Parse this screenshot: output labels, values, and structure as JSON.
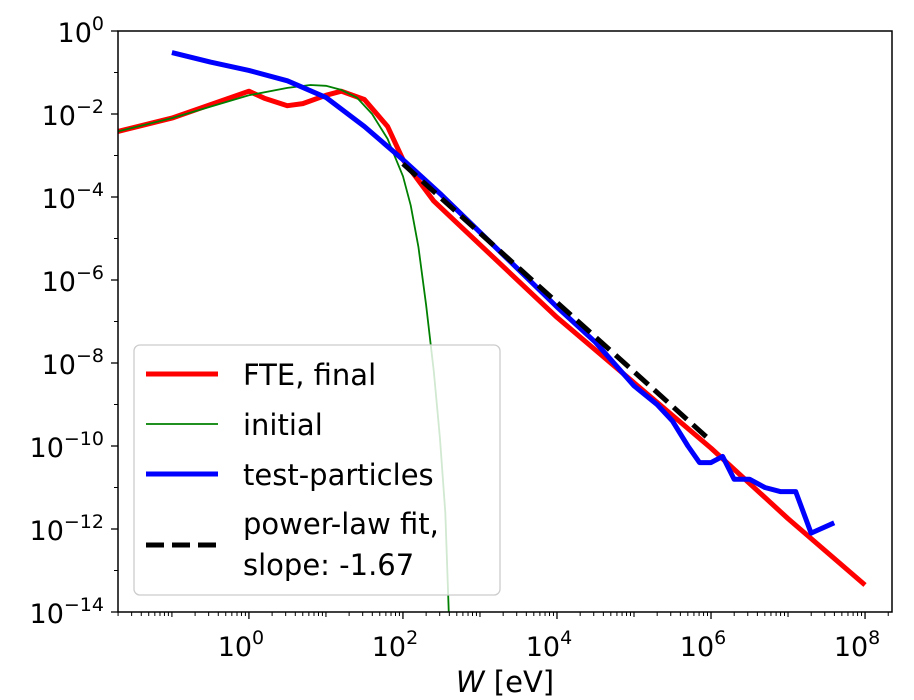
{
  "chart_data": {
    "type": "line",
    "title": "",
    "xlabel": {
      "var": "W",
      "unit": "[eV]"
    },
    "ylabel": "",
    "xscale": "log",
    "yscale": "log",
    "xlim_exp": [
      -1.7,
      8.35
    ],
    "ylim_exp": [
      -14,
      0
    ],
    "x_ticks": [
      {
        "base": "10",
        "exp": "0"
      },
      {
        "base": "10",
        "exp": "2"
      },
      {
        "base": "10",
        "exp": "4"
      },
      {
        "base": "10",
        "exp": "6"
      },
      {
        "base": "10",
        "exp": "8"
      }
    ],
    "y_ticks": [
      {
        "base": "10",
        "exp": "0"
      },
      {
        "base": "10",
        "exp": "−2"
      },
      {
        "base": "10",
        "exp": "−4"
      },
      {
        "base": "10",
        "exp": "−6"
      },
      {
        "base": "10",
        "exp": "−8"
      },
      {
        "base": "10",
        "exp": "−10"
      },
      {
        "base": "10",
        "exp": "−12"
      },
      {
        "base": "10",
        "exp": "−14"
      }
    ],
    "legend_position": "lower-left",
    "series": [
      {
        "name": "FTE, final",
        "color": "#ff0000",
        "style": "solid",
        "width": "thick",
        "log10_points": [
          [
            -1.7,
            -2.42
          ],
          [
            -1.0,
            -2.1
          ],
          [
            0,
            -1.45
          ],
          [
            0.2,
            -1.62
          ],
          [
            0.5,
            -1.8
          ],
          [
            0.7,
            -1.75
          ],
          [
            1.0,
            -1.55
          ],
          [
            1.2,
            -1.45
          ],
          [
            1.5,
            -1.65
          ],
          [
            1.8,
            -2.3
          ],
          [
            2.0,
            -3.1
          ],
          [
            2.4,
            -4.1
          ],
          [
            4,
            -6.9
          ],
          [
            6,
            -10.05
          ],
          [
            7,
            -11.75
          ],
          [
            8,
            -13.35
          ]
        ]
      },
      {
        "name": "initial",
        "color": "#008000",
        "style": "solid",
        "width": "thin",
        "log10_points": [
          [
            -1.7,
            -2.42
          ],
          [
            -1.0,
            -2.1
          ],
          [
            0,
            -1.55
          ],
          [
            0.5,
            -1.37
          ],
          [
            0.8,
            -1.3
          ],
          [
            1.0,
            -1.32
          ],
          [
            1.2,
            -1.42
          ],
          [
            1.4,
            -1.6
          ],
          [
            1.6,
            -2.0
          ],
          [
            1.8,
            -2.6
          ],
          [
            2.0,
            -3.5
          ],
          [
            2.1,
            -4.2
          ],
          [
            2.2,
            -5.2
          ],
          [
            2.3,
            -6.6
          ],
          [
            2.4,
            -8.2
          ],
          [
            2.48,
            -9.8
          ],
          [
            2.55,
            -11.6
          ],
          [
            2.6,
            -14.3
          ]
        ]
      },
      {
        "name": "test-particles",
        "color": "#0000ff",
        "style": "solid",
        "width": "thick",
        "log10_points": [
          [
            -1.0,
            -0.52
          ],
          [
            -0.5,
            -0.75
          ],
          [
            0,
            -0.95
          ],
          [
            0.5,
            -1.2
          ],
          [
            1.0,
            -1.6
          ],
          [
            1.5,
            -2.3
          ],
          [
            2.0,
            -3.1
          ],
          [
            2.5,
            -3.95
          ],
          [
            3.0,
            -4.85
          ],
          [
            3.5,
            -5.75
          ],
          [
            4.0,
            -6.65
          ],
          [
            4.5,
            -7.5
          ],
          [
            5.0,
            -8.55
          ],
          [
            5.3,
            -9.0
          ],
          [
            5.5,
            -9.4
          ],
          [
            5.7,
            -10.0
          ],
          [
            5.85,
            -10.4
          ],
          [
            6.0,
            -10.4
          ],
          [
            6.15,
            -10.25
          ],
          [
            6.3,
            -10.8
          ],
          [
            6.5,
            -10.8
          ],
          [
            6.7,
            -11.0
          ],
          [
            6.9,
            -11.1
          ],
          [
            7.1,
            -11.1
          ],
          [
            7.3,
            -12.1
          ],
          [
            7.6,
            -11.85
          ]
        ]
      },
      {
        "name": "power-law fit,",
        "name_line2": "slope: -1.67",
        "color": "#000000",
        "style": "dashed",
        "width": "thick",
        "log10_points": [
          [
            2.0,
            -3.2
          ],
          [
            6.0,
            -9.88
          ]
        ]
      }
    ]
  }
}
